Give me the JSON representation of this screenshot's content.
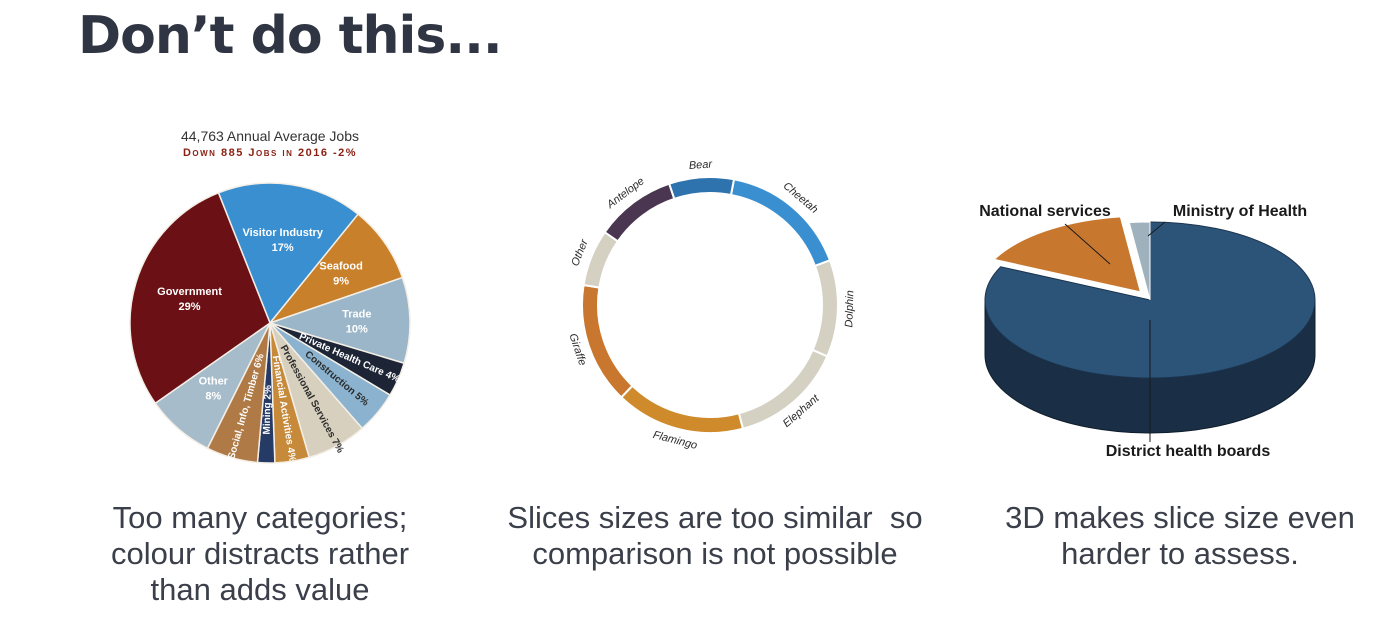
{
  "page": {
    "title": "Don’t do this...",
    "captions": [
      [
        "Too many categories;",
        "colour distracts rather",
        "than adds value"
      ],
      [
        "Slices sizes are too similar  so",
        "comparison is not possible"
      ],
      [
        "3D makes slice size even",
        "harder to assess."
      ]
    ]
  },
  "chart_data": [
    {
      "type": "pie",
      "title": "44,763 Annual Average Jobs",
      "subtitle": "Down 885 Jobs in 2016 -2%",
      "slices": [
        {
          "label": "Visitor Industry",
          "pct_label": "17%",
          "value": 17,
          "color": "#3a8fd0"
        },
        {
          "label": "Seafood",
          "pct_label": "9%",
          "value": 9,
          "color": "#c9802a"
        },
        {
          "label": "Trade",
          "pct_label": "10%",
          "value": 10,
          "color": "#9bb6c9"
        },
        {
          "label": "Private Health Care",
          "pct_label": "4%",
          "value": 4,
          "color": "#1c2435"
        },
        {
          "label": "Construction",
          "pct_label": "5%",
          "value": 5,
          "color": "#8bb3cf"
        },
        {
          "label": "Professional Services",
          "pct_label": "7%",
          "value": 7,
          "color": "#d8d0bf"
        },
        {
          "label": "Financial Activities",
          "pct_label": "4%",
          "value": 4,
          "color": "#c68a3a"
        },
        {
          "label": "Mining",
          "pct_label": "2%",
          "value": 2,
          "color": "#263a66"
        },
        {
          "label": "Social, Info, Timber",
          "pct_label": "6%",
          "value": 6,
          "color": "#b07a46"
        },
        {
          "label": "Other",
          "pct_label": "8%",
          "value": 8,
          "color": "#a7bccb"
        },
        {
          "label": "Government",
          "pct_label": "29%",
          "value": 29,
          "color": "#6b1014"
        }
      ],
      "inline_labels": [
        {
          "text": "Visitor Industry",
          "sub": "17%"
        },
        {
          "text": "Seafood",
          "sub": "9%"
        },
        {
          "text": "Trade",
          "sub": "10%"
        },
        {
          "text": "Private Health",
          "sub": "Care 4%"
        },
        {
          "text": "Construction 5%",
          "sub": ""
        },
        {
          "text": "Professional Services 7%",
          "sub": ""
        },
        {
          "text": "Financial Activities 4%",
          "sub": ""
        },
        {
          "text": "Mining 2%",
          "sub": ""
        },
        {
          "text": "Social, Info, Timber 6%",
          "sub": ""
        },
        {
          "text": "Other",
          "sub": "8%"
        },
        {
          "text": "Government",
          "sub": "29%"
        }
      ]
    },
    {
      "type": "pie",
      "variant": "donut",
      "slices": [
        {
          "label": "Cheetah",
          "value": 16,
          "color": "#3a8fd0"
        },
        {
          "label": "Dolphin",
          "value": 12,
          "color": "#d4d0c2"
        },
        {
          "label": "Elephant",
          "value": 14,
          "color": "#d4d0c2"
        },
        {
          "label": "Flamingo",
          "value": 16,
          "color": "#cf8a2c"
        },
        {
          "label": "Giraffe",
          "value": 15,
          "color": "#c9762e"
        },
        {
          "label": "Other",
          "value": 7,
          "color": "#d4d0c2"
        },
        {
          "label": "Antelope",
          "value": 10,
          "color": "#4a3650"
        },
        {
          "label": "Bear",
          "value": 8,
          "color": "#2f73ae"
        }
      ]
    },
    {
      "type": "pie",
      "variant": "3d",
      "slices": [
        {
          "label": "District health boards",
          "value": 82,
          "color": "#2c5378"
        },
        {
          "label": "National services",
          "value": 16,
          "color": "#c8782e"
        },
        {
          "label": "Ministry of Health",
          "value": 2,
          "color": "#9fb1bd"
        }
      ]
    }
  ]
}
